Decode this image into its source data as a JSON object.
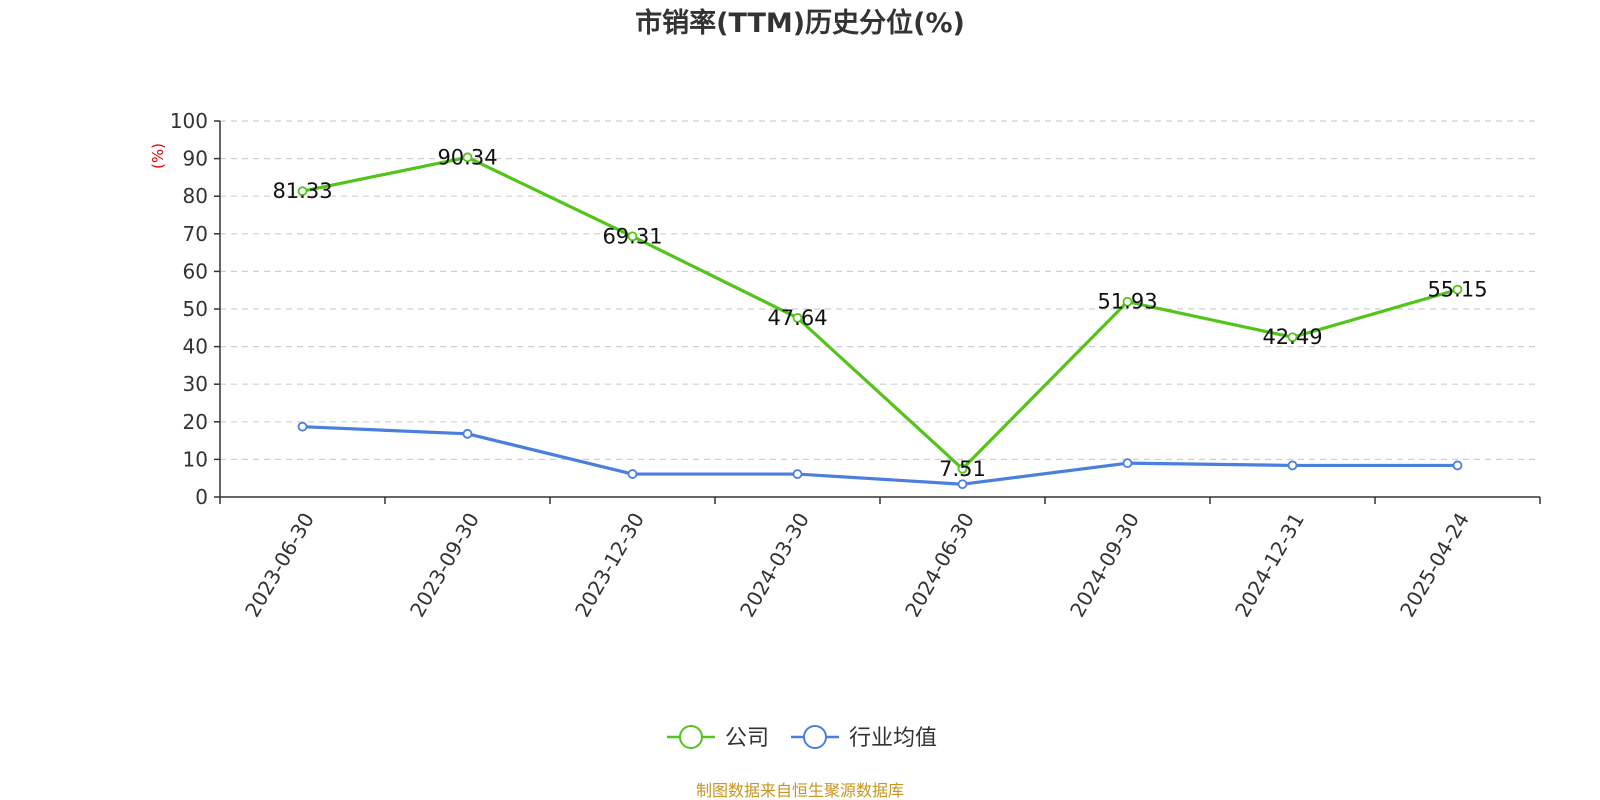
{
  "chart_data": {
    "type": "line",
    "title": "市销率(TTM)历史分位(%)",
    "ylabel": "(%)",
    "xlabel": "",
    "ylim": [
      0,
      100
    ],
    "yticks": [
      0,
      10,
      20,
      30,
      40,
      50,
      60,
      70,
      80,
      90,
      100
    ],
    "categories": [
      "2023-06-30",
      "2023-09-30",
      "2023-12-30",
      "2024-03-30",
      "2024-06-30",
      "2024-09-30",
      "2024-12-31",
      "2025-04-24"
    ],
    "series": [
      {
        "name": "公司",
        "color": "#52c41a",
        "values": [
          81.33,
          90.34,
          69.31,
          47.64,
          7.51,
          51.93,
          42.49,
          55.15
        ],
        "labels_shown": true
      },
      {
        "name": "行业均值",
        "color": "#4a7fdc",
        "values": [
          18.7,
          16.8,
          6.1,
          6.1,
          3.4,
          9.0,
          8.4,
          8.4
        ],
        "labels_shown": false
      }
    ],
    "grid": true,
    "legend_position": "bottom-center"
  },
  "footer": {
    "source": "制图数据来自恒生聚源数据库"
  }
}
